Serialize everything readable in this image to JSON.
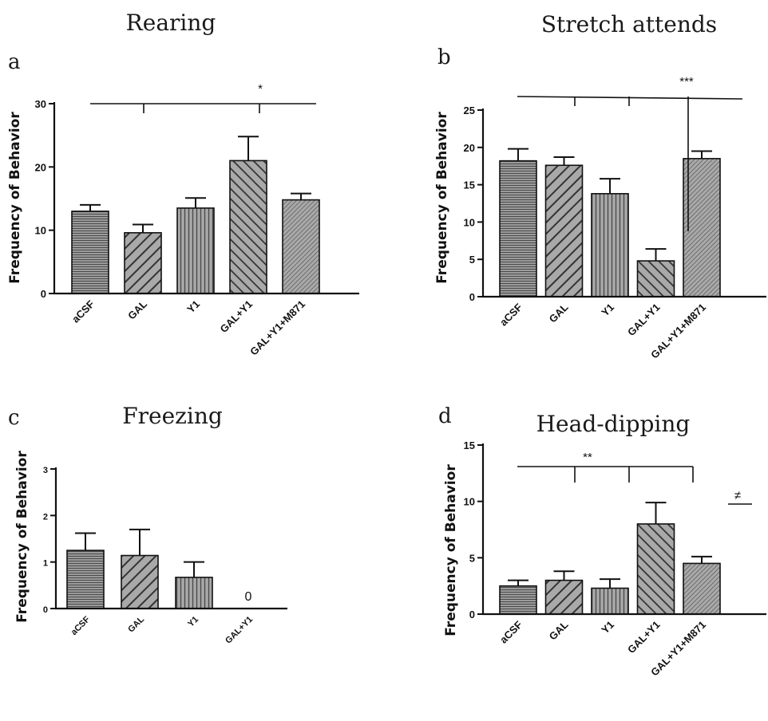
{
  "chart_data": [
    {
      "type": "bar",
      "panel_letter": "a",
      "title": "Rearing",
      "ylabel": "Frequency of Behavior",
      "ylim": [
        0,
        30
      ],
      "yticks": [
        0,
        10,
        20,
        30
      ],
      "categories": [
        "aCSF",
        "GAL",
        "Y1",
        "GAL+Y1",
        "GAL+Y1+M871"
      ],
      "values": [
        13,
        9.6,
        13.5,
        21,
        14.8
      ],
      "errors": [
        1.0,
        1.3,
        1.6,
        3.8,
        1.0
      ],
      "patterns": [
        "horizontal",
        "diagonal",
        "vertical",
        "diagonal-dense",
        "diagonal-fine"
      ],
      "significance": [
        {
          "label": "*",
          "compares": [
            "aCSF",
            "GAL",
            "GAL+Y1",
            "GAL+Y1+M871"
          ]
        }
      ],
      "value_labels": []
    },
    {
      "type": "bar",
      "panel_letter": "b",
      "title": "Stretch attends",
      "ylabel": "Frequency of Behavior",
      "ylim": [
        0,
        25
      ],
      "yticks": [
        0,
        5,
        10,
        15,
        20,
        25
      ],
      "categories": [
        "aCSF",
        "GAL",
        "Y1",
        "GAL+Y1",
        "GAL+Y1+M871"
      ],
      "values": [
        18.2,
        17.6,
        13.8,
        4.8,
        18.5
      ],
      "errors": [
        1.6,
        1.1,
        2.0,
        1.6,
        1.0
      ],
      "patterns": [
        "horizontal",
        "diagonal",
        "vertical",
        "diagonal-dense",
        "diagonal-fine"
      ],
      "significance": [
        {
          "label": "***",
          "compares": [
            "aCSF",
            "GAL",
            "Y1",
            "GAL+Y1",
            "GAL+Y1+M871"
          ]
        }
      ],
      "value_labels": []
    },
    {
      "type": "bar",
      "panel_letter": "c",
      "title": "Freezing",
      "ylabel": "Frequency of Behavior",
      "ylim": [
        0,
        3
      ],
      "yticks": [
        0,
        1,
        2,
        3
      ],
      "categories": [
        "aCSF",
        "GAL",
        "Y1",
        "GAL+Y1"
      ],
      "values": [
        1.25,
        1.14,
        0.67,
        0
      ],
      "errors": [
        0.37,
        0.56,
        0.33,
        0
      ],
      "patterns": [
        "horizontal",
        "diagonal",
        "vertical",
        "diagonal-dense"
      ],
      "significance": [],
      "value_labels": [
        {
          "category": "GAL+Y1",
          "text": "0"
        }
      ]
    },
    {
      "type": "bar",
      "panel_letter": "d",
      "title": "Head-dipping",
      "ylabel": "Frequency of Behavior",
      "ylim": [
        0,
        15
      ],
      "yticks": [
        0,
        5,
        10,
        15
      ],
      "categories": [
        "aCSF",
        "GAL",
        "Y1",
        "GAL+Y1",
        "GAL+Y1+M871"
      ],
      "values": [
        2.5,
        3.0,
        2.3,
        8.0,
        4.5
      ],
      "errors": [
        0.5,
        0.8,
        0.8,
        1.9,
        0.6
      ],
      "patterns": [
        "horizontal",
        "diagonal",
        "vertical",
        "diagonal-dense",
        "diagonal-fine"
      ],
      "significance": [
        {
          "label": "**",
          "compares": [
            "aCSF",
            "GAL",
            "Y1",
            "GAL+Y1"
          ]
        },
        {
          "label": "≠",
          "compares": [
            "GAL+Y1+M871"
          ]
        }
      ],
      "value_labels": []
    }
  ],
  "colors": {
    "bar_fill": "#a9a9a9",
    "hatch": "#4a4a4a",
    "outline": "#111111"
  }
}
